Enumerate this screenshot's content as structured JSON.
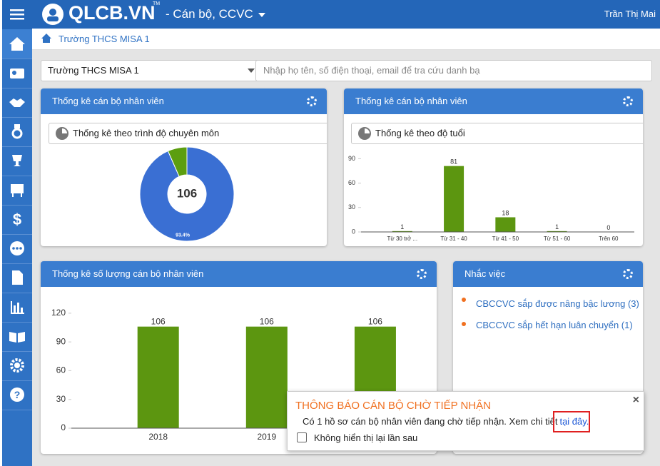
{
  "header": {
    "logo": "QLCB.VN",
    "logo_tm": "TM",
    "module": "- Cán bộ, CCVC",
    "user": "Trần Thị Mai"
  },
  "breadcrumb": "Trường THCS MISA 1",
  "filters": {
    "school": "Trường THCS MISA 1",
    "search_placeholder": "Nhập họ tên, số điện thoại, email để tra cứu danh bạ"
  },
  "panels": [
    {
      "title": "Thống kê cán bộ nhân viên",
      "dropdown": "Thống kê theo trình độ chuyên môn",
      "chart": {
        "type": "pie",
        "values": [
          93.4,
          6.6
        ],
        "value_labels": [
          "93.4%",
          null
        ],
        "colors": [
          "#3a6fd3",
          "#5c9e10"
        ],
        "center_label": 106
      }
    },
    {
      "title": "Thống kê cán bộ nhân viên",
      "dropdown": "Thống kê theo độ tuổi",
      "chart": {
        "type": "bar",
        "categories": [
          "Từ 30 trở ...",
          "Từ 31 - 40",
          "Từ 41 - 50",
          "Từ 51 - 60",
          "Trên 60"
        ],
        "values": [
          1,
          81,
          18,
          1,
          0
        ],
        "color": "#5c9610",
        "ylim": [
          0,
          100
        ],
        "yticks": [
          0,
          30,
          60,
          90
        ]
      }
    },
    {
      "title": "Thống kê số lượng cán bộ nhân viên",
      "chart": {
        "type": "bar",
        "categories": [
          "2018",
          "2019",
          null
        ],
        "values": [
          106,
          106,
          106
        ],
        "color": "#5c9610",
        "ylim": [
          0,
          140
        ],
        "yticks": [
          0,
          30,
          60,
          90,
          120
        ]
      }
    },
    {
      "title": "Nhắc việc",
      "items": [
        "CBCCVC sắp được nâng bậc lương (3)",
        "CBCCVC sắp hết hạn luân chuyển (1)"
      ]
    }
  ],
  "popup": {
    "title": "THÔNG BÁO CÁN BỘ CHỜ TIẾP NHẬN",
    "message": "Có 1 hồ sơ cán bộ nhân viên đang chờ tiếp nhận. Xem chi tiết",
    "link": "tại đây.",
    "checkbox": "Không hiển thị lại lần sau"
  }
}
